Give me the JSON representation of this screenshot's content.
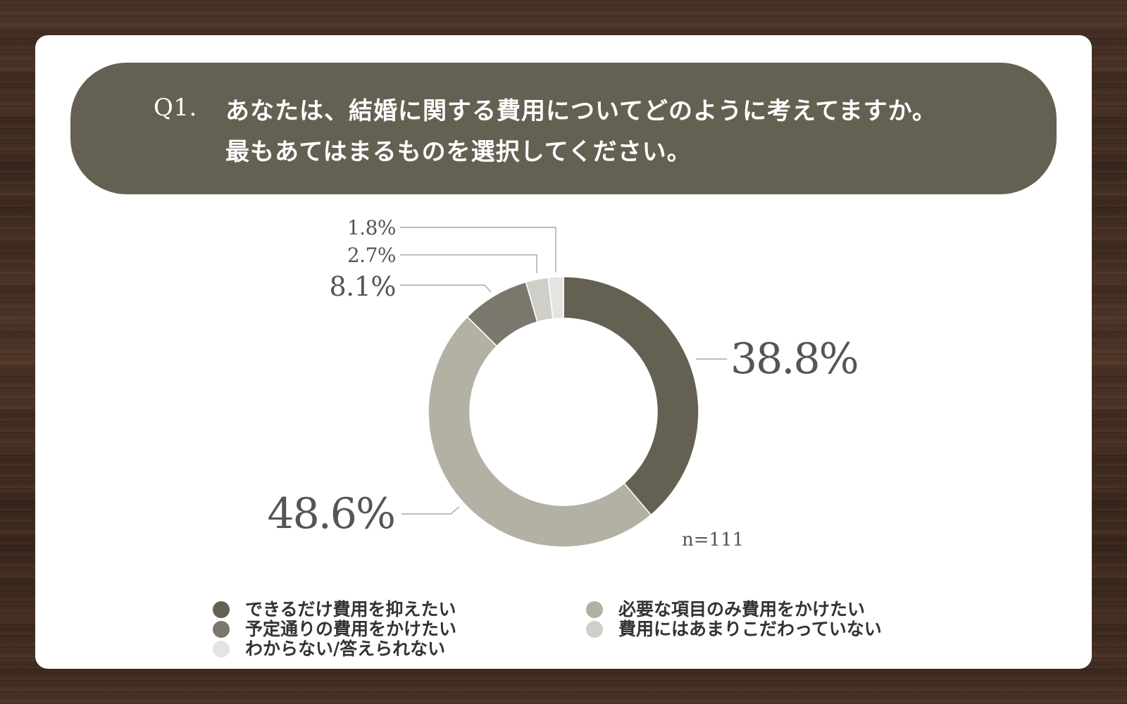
{
  "question": {
    "number": "Q1.",
    "line1": "あなたは、結婚に関する費用についてどのように考えてますか。",
    "line2": "最もあてはまるものを選択してください。"
  },
  "chart_data": {
    "type": "donut",
    "title": "",
    "n_label": "n=111",
    "series": [
      {
        "name": "できるだけ費用を抑えたい",
        "value": 38.8,
        "label": "38.8%",
        "color": "#656152"
      },
      {
        "name": "必要な項目のみ費用をかけたい",
        "value": 48.6,
        "label": "48.6%",
        "color": "#b3b1a3"
      },
      {
        "name": "予定通りの費用をかけたい",
        "value": 8.1,
        "label": "8.1%",
        "color": "#7b776c"
      },
      {
        "name": "費用にはあまりこだわっていない",
        "value": 2.7,
        "label": "2.7%",
        "color": "#cfcec8"
      },
      {
        "name": "わからない/答えられない",
        "value": 1.8,
        "label": "1.8%",
        "color": "#e4e4e2"
      }
    ],
    "legend_order": [
      0,
      1,
      2,
      3,
      4
    ],
    "legend_placement": "bottom"
  },
  "colors": {
    "header_bg": "#656152",
    "card_bg": "#ffffff",
    "label_text": "#555555",
    "leader_line": "#9a9a9a"
  }
}
